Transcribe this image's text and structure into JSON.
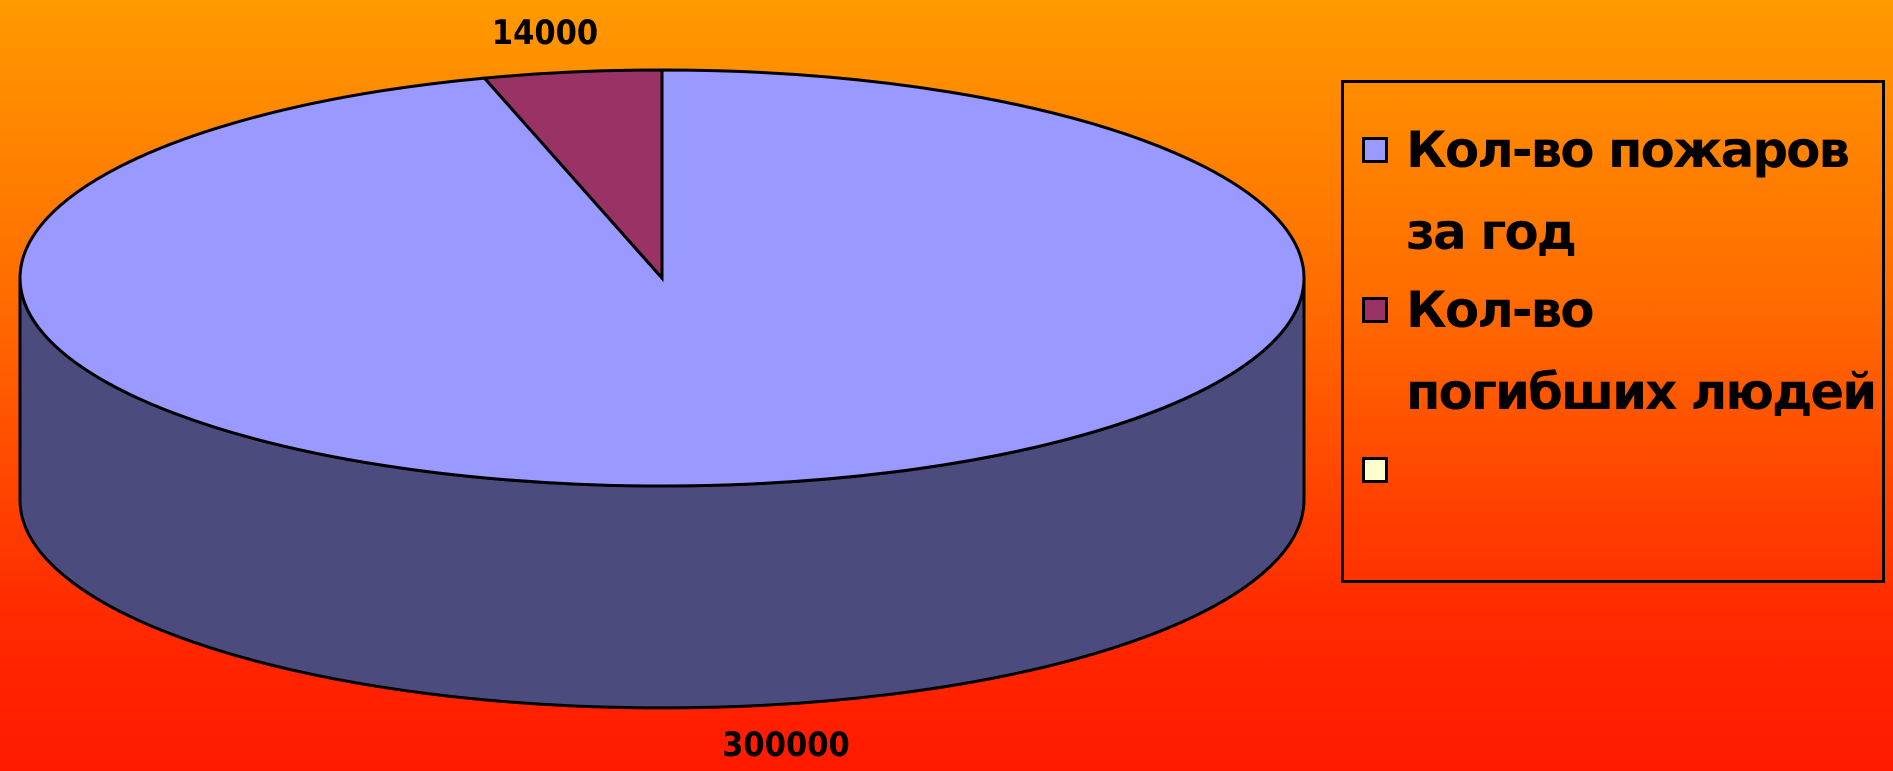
{
  "chart_data": {
    "type": "pie",
    "title": "",
    "series": [
      {
        "name": "Кол-во пожаров за год",
        "value": 300000,
        "label": "300000",
        "color": "#9999ff",
        "side_color": "#4b4b7e"
      },
      {
        "name": "Кол-во погибших людей",
        "value": 14000,
        "label": "14000",
        "color": "#993366",
        "side_color": "#5c1f3d"
      },
      {
        "name": "",
        "value": 0,
        "label": "",
        "color": "#ffffcc",
        "side_color": "#ffffcc"
      }
    ],
    "legend_position": "right",
    "style": "3d"
  }
}
